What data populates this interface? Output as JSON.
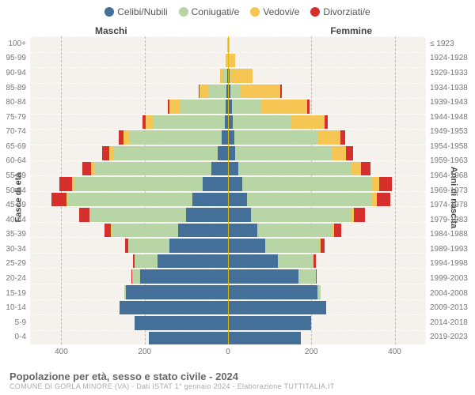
{
  "legend": {
    "items": [
      {
        "name": "single",
        "label": "Celibi/Nubili",
        "color": "#436f99"
      },
      {
        "name": "married",
        "label": "Coniugati/e",
        "color": "#b8d6a5"
      },
      {
        "name": "widowed",
        "label": "Vedovi/e",
        "color": "#f6c654"
      },
      {
        "name": "divorced",
        "label": "Divorziati/e",
        "color": "#d5302c"
      }
    ]
  },
  "headers": {
    "male": "Maschi",
    "female": "Femmine"
  },
  "axis": {
    "left_title": "Fasce di età",
    "right_title": "Anni di nascita",
    "xticks": [
      400,
      200,
      0,
      200,
      400
    ],
    "xlim": 475
  },
  "title": "Popolazione per età, sesso e stato civile - 2024",
  "subtitle": "COMUNE DI GORLA MINORE (VA) - Dati ISTAT 1° gennaio 2024 - Elaborazione TUTTITALIA.IT",
  "colors": {
    "bg": "#f5f2ed",
    "grid": "#bfbab3",
    "centerline": "#e0b900",
    "row_divider": "#ffffff",
    "text": "#777"
  },
  "rows": [
    {
      "age": "100+",
      "birth": "≤ 1923",
      "m": {
        "single": 0,
        "married": 0,
        "widowed": 2,
        "divorced": 0
      },
      "f": {
        "single": 0,
        "married": 0,
        "widowed": 3,
        "divorced": 0
      }
    },
    {
      "age": "95-99",
      "birth": "1924-1928",
      "m": {
        "single": 0,
        "married": 2,
        "widowed": 3,
        "divorced": 0
      },
      "f": {
        "single": 1,
        "married": 1,
        "widowed": 15,
        "divorced": 0
      }
    },
    {
      "age": "90-94",
      "birth": "1929-1933",
      "m": {
        "single": 1,
        "married": 10,
        "widowed": 8,
        "divorced": 0
      },
      "f": {
        "single": 3,
        "married": 5,
        "widowed": 50,
        "divorced": 0
      }
    },
    {
      "age": "85-89",
      "birth": "1934-1938",
      "m": {
        "single": 3,
        "married": 45,
        "widowed": 20,
        "divorced": 2
      },
      "f": {
        "single": 6,
        "married": 25,
        "widowed": 95,
        "divorced": 3
      }
    },
    {
      "age": "80-84",
      "birth": "1939-1943",
      "m": {
        "single": 5,
        "married": 110,
        "widowed": 25,
        "divorced": 5
      },
      "f": {
        "single": 10,
        "married": 70,
        "widowed": 110,
        "divorced": 5
      }
    },
    {
      "age": "75-79",
      "birth": "1944-1948",
      "m": {
        "single": 8,
        "married": 170,
        "widowed": 20,
        "divorced": 8
      },
      "f": {
        "single": 12,
        "married": 140,
        "widowed": 80,
        "divorced": 8
      }
    },
    {
      "age": "70-74",
      "birth": "1949-1953",
      "m": {
        "single": 15,
        "married": 220,
        "widowed": 15,
        "divorced": 12
      },
      "f": {
        "single": 15,
        "married": 200,
        "widowed": 55,
        "divorced": 12
      }
    },
    {
      "age": "65-69",
      "birth": "1954-1958",
      "m": {
        "single": 25,
        "married": 250,
        "widowed": 10,
        "divorced": 18
      },
      "f": {
        "single": 18,
        "married": 230,
        "widowed": 35,
        "divorced": 18
      }
    },
    {
      "age": "60-64",
      "birth": "1959-1963",
      "m": {
        "single": 40,
        "married": 280,
        "widowed": 8,
        "divorced": 22
      },
      "f": {
        "single": 25,
        "married": 270,
        "widowed": 25,
        "divorced": 22
      }
    },
    {
      "age": "55-59",
      "birth": "1964-1968",
      "m": {
        "single": 60,
        "married": 310,
        "widowed": 5,
        "divorced": 30
      },
      "f": {
        "single": 35,
        "married": 310,
        "widowed": 18,
        "divorced": 30
      }
    },
    {
      "age": "50-54",
      "birth": "1969-1973",
      "m": {
        "single": 85,
        "married": 300,
        "widowed": 3,
        "divorced": 35
      },
      "f": {
        "single": 45,
        "married": 300,
        "widowed": 12,
        "divorced": 32
      }
    },
    {
      "age": "45-49",
      "birth": "1974-1978",
      "m": {
        "single": 100,
        "married": 230,
        "widowed": 2,
        "divorced": 25
      },
      "f": {
        "single": 55,
        "married": 240,
        "widowed": 8,
        "divorced": 25
      }
    },
    {
      "age": "40-44",
      "birth": "1979-1983",
      "m": {
        "single": 120,
        "married": 160,
        "widowed": 1,
        "divorced": 15
      },
      "f": {
        "single": 70,
        "married": 180,
        "widowed": 4,
        "divorced": 18
      }
    },
    {
      "age": "35-39",
      "birth": "1984-1988",
      "m": {
        "single": 140,
        "married": 100,
        "widowed": 0,
        "divorced": 8
      },
      "f": {
        "single": 90,
        "married": 130,
        "widowed": 2,
        "divorced": 10
      }
    },
    {
      "age": "30-34",
      "birth": "1989-1993",
      "m": {
        "single": 170,
        "married": 55,
        "widowed": 0,
        "divorced": 4
      },
      "f": {
        "single": 120,
        "married": 85,
        "widowed": 1,
        "divorced": 5
      }
    },
    {
      "age": "25-29",
      "birth": "1994-1998",
      "m": {
        "single": 210,
        "married": 20,
        "widowed": 0,
        "divorced": 2
      },
      "f": {
        "single": 170,
        "married": 40,
        "widowed": 0,
        "divorced": 2
      }
    },
    {
      "age": "20-24",
      "birth": "1999-2003",
      "m": {
        "single": 245,
        "married": 3,
        "widowed": 0,
        "divorced": 0
      },
      "f": {
        "single": 215,
        "married": 8,
        "widowed": 0,
        "divorced": 0
      }
    },
    {
      "age": "15-19",
      "birth": "2004-2008",
      "m": {
        "single": 260,
        "married": 0,
        "widowed": 0,
        "divorced": 0
      },
      "f": {
        "single": 235,
        "married": 0,
        "widowed": 0,
        "divorced": 0
      }
    },
    {
      "age": "10-14",
      "birth": "2009-2013",
      "m": {
        "single": 225,
        "married": 0,
        "widowed": 0,
        "divorced": 0
      },
      "f": {
        "single": 200,
        "married": 0,
        "widowed": 0,
        "divorced": 0
      }
    },
    {
      "age": "5-9",
      "birth": "2014-2018",
      "m": {
        "single": 190,
        "married": 0,
        "widowed": 0,
        "divorced": 0
      },
      "f": {
        "single": 175,
        "married": 0,
        "widowed": 0,
        "divorced": 0
      }
    },
    {
      "age": "0-4",
      "birth": "2019-2023",
      "m": {
        "single": 150,
        "married": 0,
        "widowed": 0,
        "divorced": 0
      },
      "f": {
        "single": 140,
        "married": 0,
        "widowed": 0,
        "divorced": 0
      }
    }
  ]
}
